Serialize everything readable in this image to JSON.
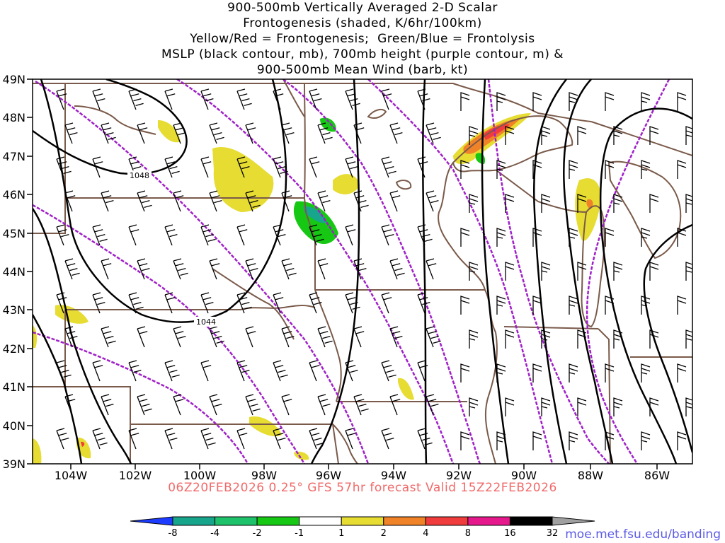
{
  "title_lines": [
    "900-500mb Vertically Averaged 2-D Scalar",
    "Frontogenesis (shaded, K/6hr/100km)",
    "Yellow/Red = Frontogenesis;  Green/Blue = Frontolysis",
    "MSLP (black contour, mb), 700mb height (purple contour, m) &",
    "900-500mb Mean Wind (barb, kt)"
  ],
  "lat_labels": [
    "49N",
    "48N",
    "47N",
    "46N",
    "45N",
    "44N",
    "43N",
    "42N",
    "41N",
    "40N",
    "39N"
  ],
  "lon_labels": [
    "104W",
    "102W",
    "100W",
    "98W",
    "96W",
    "94W",
    "92W",
    "90W",
    "88W",
    "86W"
  ],
  "isobar_labels": [
    "1048",
    "1044"
  ],
  "valid_text": "06Z20FEB2026 0.25° GFS 57hr forecast Valid 15Z22FEB2026",
  "credit": "moe.met.fsu.edu/banding",
  "colorbar": {
    "labels": [
      "-8",
      "-4",
      "-2",
      "-1",
      "1",
      "2",
      "4",
      "8",
      "16",
      "32"
    ],
    "colors": [
      "#1e3cff",
      "#17a58c",
      "#1dc26a",
      "#16c714",
      "#ffffff",
      "#e6dc32",
      "#f08228",
      "#f03c3c",
      "#e6198c",
      "#000000",
      "#a0a0a0"
    ]
  },
  "colors": {
    "state_borders": "#7a5a4a",
    "isobar": "#000000",
    "height": "#a020c8",
    "barb": "#000000"
  }
}
